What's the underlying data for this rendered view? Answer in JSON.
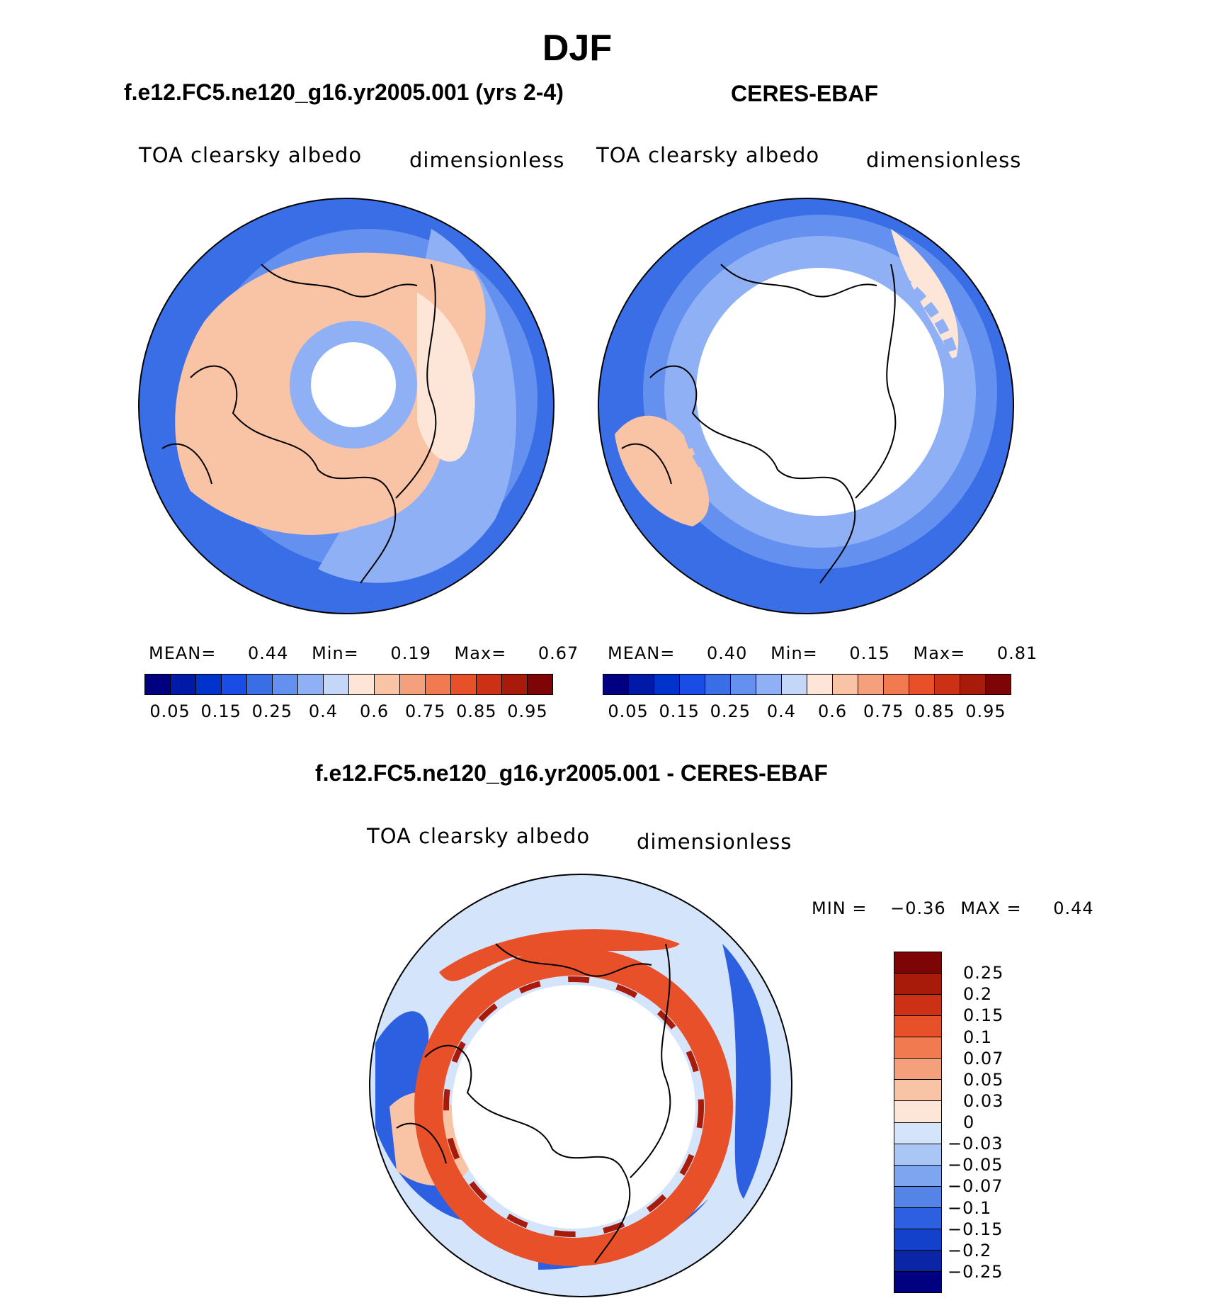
{
  "page": {
    "title": "DJF",
    "diff_title": "f.e12.FC5.ne120_g16.yr2005.001 - CERES-EBAF"
  },
  "panels": [
    {
      "title": "f.e12.FC5.ne120_g16.yr2005.001 (yrs 2-4)",
      "left_label": "TOA clearsky albedo",
      "right_label": "dimensionless",
      "stats": {
        "mean_label": "MEAN=",
        "mean": "0.44",
        "min_label": "Min=",
        "min": "0.19",
        "max_label": "Max=",
        "max": "0.67"
      }
    },
    {
      "title": "CERES-EBAF",
      "left_label": "TOA clearsky albedo",
      "right_label": "dimensionless",
      "stats": {
        "mean_label": "MEAN=",
        "mean": "0.40",
        "min_label": "Min=",
        "min": "0.15",
        "max_label": "Max=",
        "max": "0.81"
      }
    }
  ],
  "diff_panel": {
    "left_label": "TOA clearsky albedo",
    "right_label": "dimensionless",
    "minmax": {
      "min_label": "MIN =",
      "min": "−0.36",
      "max_label": "MAX =",
      "max": "0.44"
    }
  },
  "colorbars": {
    "horizontal": {
      "colors": [
        "#000080",
        "#0019a6",
        "#0033cc",
        "#1a4de6",
        "#3a6ee6",
        "#6490f0",
        "#8fb0f5",
        "#c4d7f9",
        "#fde6d7",
        "#f9c3a6",
        "#f5a07c",
        "#f27a50",
        "#e8502a",
        "#cc3116",
        "#a81a0a",
        "#7d0505"
      ],
      "tick_labels": [
        "0.05",
        "0.15",
        "0.25",
        "0.4",
        "0.6",
        "0.75",
        "0.85",
        "0.95"
      ]
    },
    "vertical": {
      "colors": [
        "#7d0505",
        "#a81a0a",
        "#cc3116",
        "#e8502a",
        "#f27a50",
        "#f5a07c",
        "#f9c3a6",
        "#fde6d7",
        "#d4e4fa",
        "#a9c6f5",
        "#7ea5ef",
        "#5584e8",
        "#2c60e0",
        "#1441cc",
        "#0a25a6",
        "#000080"
      ],
      "tick_labels": [
        "0.25",
        "0.2",
        "0.15",
        "0.1",
        "0.07",
        "0.05",
        "0.03",
        "0",
        "−0.03",
        "−0.05",
        "−0.07",
        "−0.1",
        "−0.15",
        "−0.2",
        "−0.25"
      ]
    }
  },
  "map_colors": {
    "ocean_deep": "#3a6ee6",
    "ocean_mid": "#6490f0",
    "ocean_light": "#8fb0f5",
    "land_pale": "#f9c3a6",
    "land_light": "#fde6d7",
    "pole_white": "#ffffff",
    "diff_light": "#d4e4fa",
    "diff_red": "#e8502a",
    "diff_dark": "#a81a0a",
    "diff_blue": "#2c60e0"
  }
}
